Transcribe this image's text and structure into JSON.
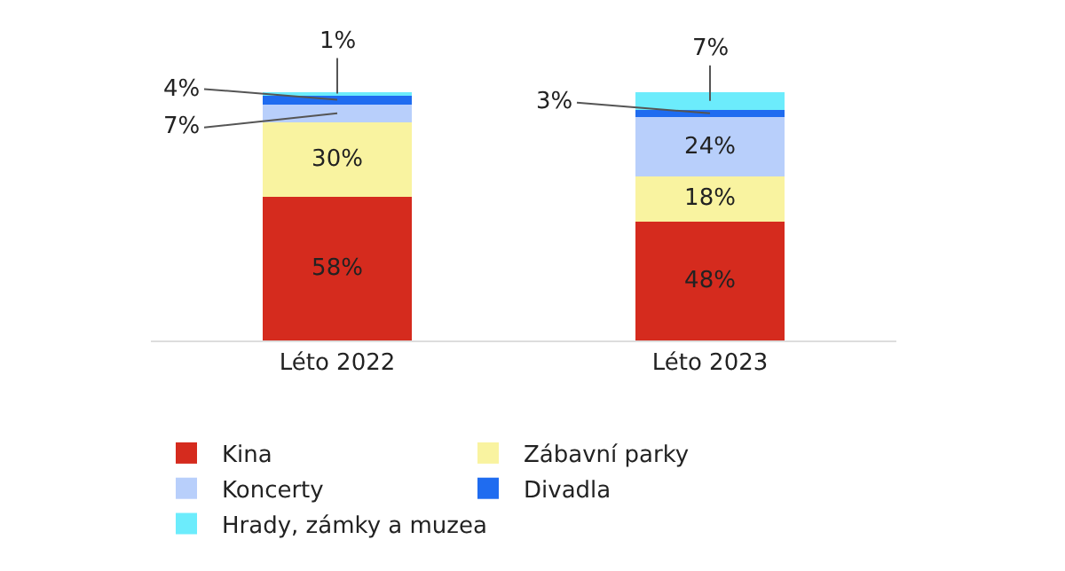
{
  "chart_data": {
    "type": "bar",
    "stacked": true,
    "categories": [
      "Léto 2022",
      "Léto 2023"
    ],
    "legend": "bottom",
    "tick_labels": "x",
    "series": [
      {
        "name": "Kina",
        "color": "#d52b1e",
        "values": [
          58,
          48
        ],
        "value_labels": [
          "58%",
          "48%"
        ]
      },
      {
        "name": "Zábavní parky",
        "color": "#f9f3a0",
        "values": [
          30,
          18
        ],
        "value_labels": [
          "30%",
          "18%"
        ]
      },
      {
        "name": "Koncerty",
        "color": "#b8cffb",
        "values": [
          7,
          24
        ],
        "value_labels": [
          "7%",
          "24%"
        ]
      },
      {
        "name": "Divadla",
        "color": "#1f6cf0",
        "values": [
          4,
          3
        ],
        "value_labels": [
          "4%",
          "3%"
        ]
      },
      {
        "name": "Hrady, zámky a muzea",
        "color": "#6cecfc",
        "values": [
          1,
          7
        ],
        "value_labels": [
          "1%",
          "7%"
        ]
      }
    ]
  }
}
